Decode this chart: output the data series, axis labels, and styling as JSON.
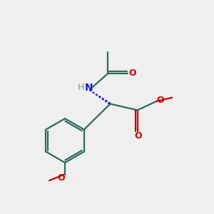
{
  "bg_color": "#efefef",
  "bond_color": "#2d6b5e",
  "oxygen_color": "#cc0000",
  "nitrogen_color": "#1a1acc",
  "h_color": "#6a9a8a",
  "line_width": 1.6,
  "figsize": [
    3.0,
    3.0
  ],
  "dpi": 100,
  "xlim": [
    0,
    10
  ],
  "ylim": [
    0,
    10
  ]
}
